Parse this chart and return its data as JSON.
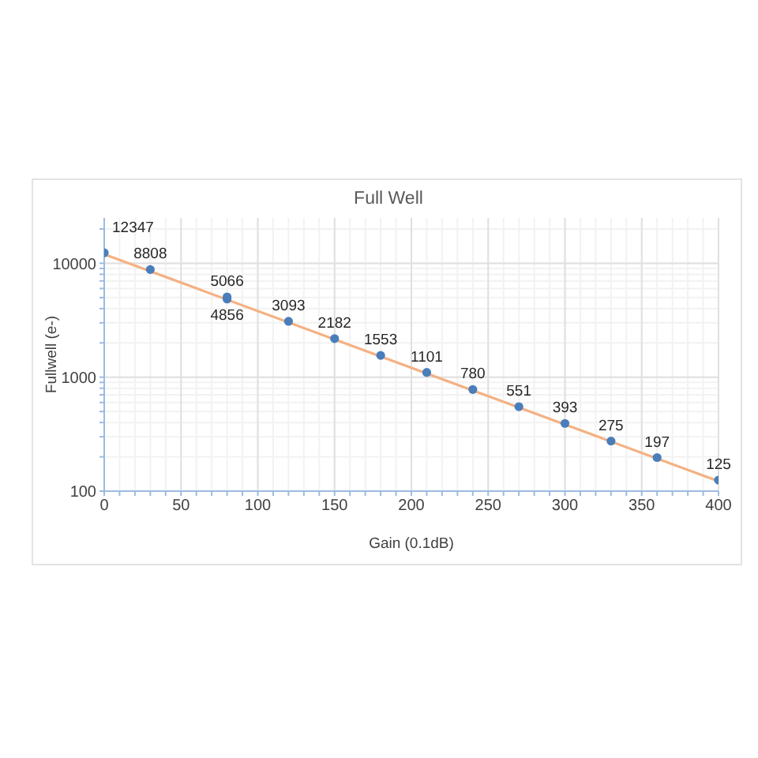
{
  "chart_data": {
    "type": "scatter",
    "title": "Full Well",
    "xlabel": "Gain (0.1dB)",
    "ylabel": "Fullwell (e-)",
    "x": [
      0,
      30,
      80,
      80,
      120,
      150,
      180,
      210,
      240,
      270,
      300,
      330,
      360,
      400
    ],
    "series": [
      {
        "color": "#4a7ebb",
        "marker": "circle",
        "values": [
          12347,
          8808,
          5066,
          4856,
          3093,
          2182,
          1553,
          1101,
          780,
          551,
          393,
          275,
          197,
          125
        ],
        "value_labels": [
          "12347",
          "8808",
          "5066",
          "4856",
          "3093",
          "2182",
          "1553",
          "1101",
          "780",
          "551",
          "393",
          "275",
          "197",
          "125"
        ]
      },
      {
        "type": "line",
        "color": "#f4b183",
        "marker": "none",
        "x": [
          0,
          400
        ],
        "values": [
          12000,
          122
        ]
      }
    ],
    "log": "y",
    "xlim": [
      0,
      400
    ],
    "ylim": [
      100,
      25000
    ],
    "xticks": [
      0,
      {
        "value": 10,
        "label": null
      },
      {
        "value": 20,
        "label": null
      },
      {
        "value": 30,
        "label": null
      },
      {
        "value": 40,
        "label": null
      },
      50,
      {
        "value": 60,
        "label": null
      },
      {
        "value": 70,
        "label": null
      },
      {
        "value": 80,
        "label": null
      },
      {
        "value": 90,
        "label": null
      },
      100,
      {
        "value": 110,
        "label": null
      },
      {
        "value": 120,
        "label": null
      },
      {
        "value": 130,
        "label": null
      },
      {
        "value": 140,
        "label": null
      },
      150,
      {
        "value": 160,
        "label": null
      },
      {
        "value": 170,
        "label": null
      },
      {
        "value": 180,
        "label": null
      },
      {
        "value": 190,
        "label": null
      },
      200,
      {
        "value": 210,
        "label": null
      },
      {
        "value": 220,
        "label": null
      },
      {
        "value": 230,
        "label": null
      },
      {
        "value": 240,
        "label": null
      },
      250,
      {
        "value": 260,
        "label": null
      },
      {
        "value": 270,
        "label": null
      },
      {
        "value": 280,
        "label": null
      },
      {
        "value": 290,
        "label": null
      },
      300,
      {
        "value": 310,
        "label": null
      },
      {
        "value": 320,
        "label": null
      },
      {
        "value": 330,
        "label": null
      },
      {
        "value": 340,
        "label": null
      },
      350,
      {
        "value": 360,
        "label": null
      },
      {
        "value": 370,
        "label": null
      },
      {
        "value": 380,
        "label": null
      },
      {
        "value": 390,
        "label": null
      },
      400
    ],
    "yticks": [
      100,
      {
        "value": 200,
        "label": null
      },
      {
        "value": 300,
        "label": null
      },
      {
        "value": 400,
        "label": null
      },
      {
        "value": 500,
        "label": null
      },
      {
        "value": 600,
        "label": null
      },
      {
        "value": 700,
        "label": null
      },
      {
        "value": 800,
        "label": null
      },
      {
        "value": 900,
        "label": null
      },
      1000,
      {
        "value": 2000,
        "label": null
      },
      {
        "value": 3000,
        "label": null
      },
      {
        "value": 4000,
        "label": null
      },
      {
        "value": 5000,
        "label": null
      },
      {
        "value": 6000,
        "label": null
      },
      {
        "value": 7000,
        "label": null
      },
      {
        "value": 8000,
        "label": null
      },
      {
        "value": 9000,
        "label": null
      },
      10000,
      {
        "value": 20000,
        "label": null
      }
    ],
    "grid": true
  }
}
